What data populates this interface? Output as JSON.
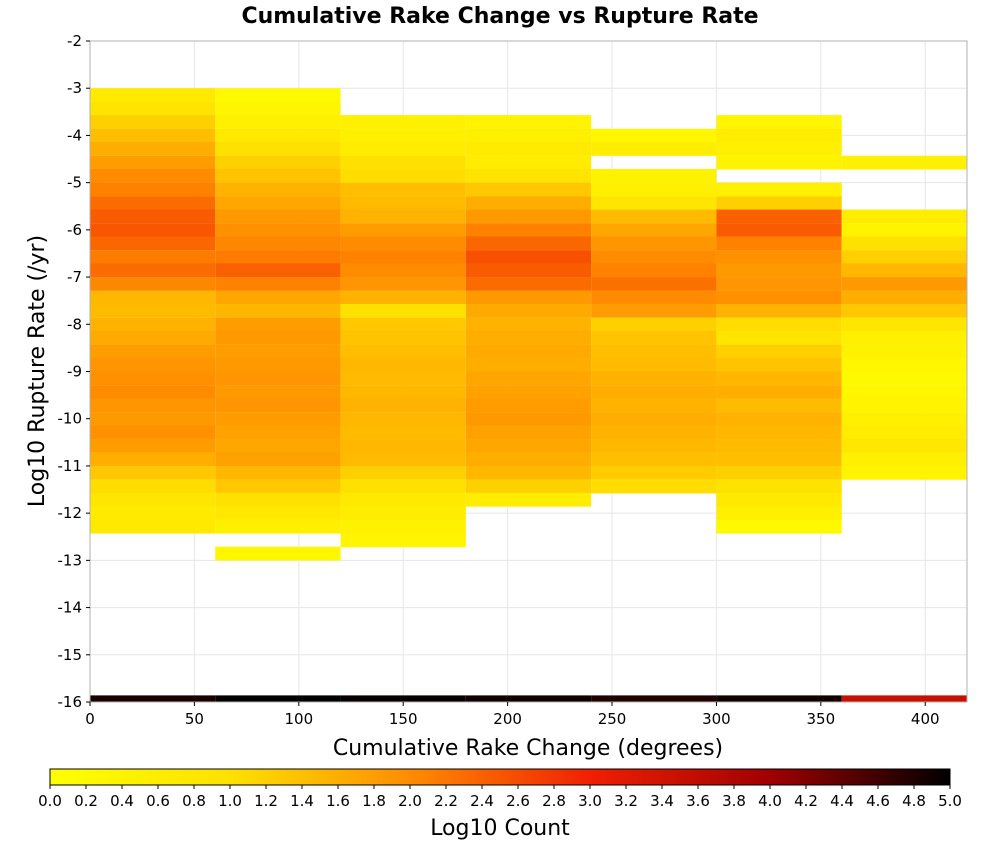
{
  "chart_data": {
    "type": "heatmap",
    "title": "Cumulative Rake Change vs Rupture Rate",
    "xlabel": "Cumulative Rake Change (degrees)",
    "ylabel": "Log10 Rupture Rate (/yr)",
    "xlim": [
      0,
      420
    ],
    "ylim": [
      -16,
      -2
    ],
    "x_ticks": [
      "0",
      "50",
      "100",
      "150",
      "200",
      "250",
      "300",
      "350",
      "400"
    ],
    "y_ticks": [
      "-2",
      "-3",
      "-4",
      "-5",
      "-6",
      "-7",
      "-8",
      "-9",
      "-10",
      "-11",
      "-12",
      "-13",
      "-14",
      "-15",
      "-16"
    ],
    "x_bin_width": 60,
    "x_bin_starts": [
      0,
      60,
      120,
      180,
      240,
      300,
      360
    ],
    "y_bin_height": 0.2857,
    "color_scale": {
      "label": "Log10 Count",
      "min": 0.0,
      "max": 5.0,
      "ticks": [
        "0.0",
        "0.2",
        "0.4",
        "0.6",
        "0.8",
        "1.0",
        "1.2",
        "1.4",
        "1.6",
        "1.8",
        "2.0",
        "2.2",
        "2.4",
        "2.6",
        "2.8",
        "3.0",
        "3.2",
        "3.4",
        "3.6",
        "3.8",
        "4.0",
        "4.2",
        "4.4",
        "4.6",
        "4.8",
        "5.0"
      ],
      "colors": [
        "#ffff00",
        "#ffe100",
        "#ff8c00",
        "#f02000",
        "#a00000",
        "#000000"
      ]
    },
    "columns": [
      {
        "x_start": 0,
        "cells": [
          {
            "y_top": -3.0,
            "value": 0.7
          },
          {
            "y_top": -3.29,
            "value": 0.9
          },
          {
            "y_top": -3.57,
            "value": 1.2
          },
          {
            "y_top": -3.86,
            "value": 1.4
          },
          {
            "y_top": -4.14,
            "value": 1.6
          },
          {
            "y_top": -4.43,
            "value": 1.8
          },
          {
            "y_top": -4.71,
            "value": 2.0
          },
          {
            "y_top": -5.0,
            "value": 2.1
          },
          {
            "y_top": -5.29,
            "value": 2.3
          },
          {
            "y_top": -5.57,
            "value": 2.45
          },
          {
            "y_top": -5.86,
            "value": 2.5
          },
          {
            "y_top": -6.14,
            "value": 2.35
          },
          {
            "y_top": -6.43,
            "value": 2.15
          },
          {
            "y_top": -6.71,
            "value": 2.3
          },
          {
            "y_top": -7.0,
            "value": 2.05
          },
          {
            "y_top": -7.29,
            "value": 1.5
          },
          {
            "y_top": -7.57,
            "value": 1.45
          },
          {
            "y_top": -7.86,
            "value": 1.55
          },
          {
            "y_top": -8.14,
            "value": 1.65
          },
          {
            "y_top": -8.43,
            "value": 1.8
          },
          {
            "y_top": -8.71,
            "value": 1.9
          },
          {
            "y_top": -9.0,
            "value": 1.95
          },
          {
            "y_top": -9.29,
            "value": 2.0
          },
          {
            "y_top": -9.57,
            "value": 1.9
          },
          {
            "y_top": -9.86,
            "value": 1.85
          },
          {
            "y_top": -10.14,
            "value": 1.95
          },
          {
            "y_top": -10.43,
            "value": 1.8
          },
          {
            "y_top": -10.71,
            "value": 1.6
          },
          {
            "y_top": -11.0,
            "value": 1.3
          },
          {
            "y_top": -11.29,
            "value": 1.05
          },
          {
            "y_top": -11.57,
            "value": 0.85
          },
          {
            "y_top": -11.86,
            "value": 0.7
          },
          {
            "y_top": -12.14,
            "value": 0.75
          }
        ]
      },
      {
        "x_start": 60,
        "cells": [
          {
            "y_top": -3.0,
            "value": 0.2
          },
          {
            "y_top": -3.29,
            "value": 0.35
          },
          {
            "y_top": -3.57,
            "value": 0.5
          },
          {
            "y_top": -3.86,
            "value": 0.75
          },
          {
            "y_top": -4.14,
            "value": 1.0
          },
          {
            "y_top": -4.43,
            "value": 1.2
          },
          {
            "y_top": -4.71,
            "value": 1.35
          },
          {
            "y_top": -5.0,
            "value": 1.55
          },
          {
            "y_top": -5.29,
            "value": 1.7
          },
          {
            "y_top": -5.57,
            "value": 1.85
          },
          {
            "y_top": -5.86,
            "value": 1.95
          },
          {
            "y_top": -6.14,
            "value": 2.05
          },
          {
            "y_top": -6.43,
            "value": 2.15
          },
          {
            "y_top": -6.71,
            "value": 2.4
          },
          {
            "y_top": -7.0,
            "value": 2.1
          },
          {
            "y_top": -7.29,
            "value": 1.7
          },
          {
            "y_top": -7.57,
            "value": 1.5
          },
          {
            "y_top": -7.86,
            "value": 1.8
          },
          {
            "y_top": -8.14,
            "value": 1.85
          },
          {
            "y_top": -8.43,
            "value": 1.8
          },
          {
            "y_top": -8.71,
            "value": 1.85
          },
          {
            "y_top": -9.0,
            "value": 1.9
          },
          {
            "y_top": -9.29,
            "value": 1.85
          },
          {
            "y_top": -9.57,
            "value": 1.9
          },
          {
            "y_top": -9.86,
            "value": 1.8
          },
          {
            "y_top": -10.14,
            "value": 1.75
          },
          {
            "y_top": -10.43,
            "value": 1.7
          },
          {
            "y_top": -10.71,
            "value": 1.75
          },
          {
            "y_top": -11.0,
            "value": 1.5
          },
          {
            "y_top": -11.29,
            "value": 1.3
          },
          {
            "y_top": -11.57,
            "value": 1.0
          },
          {
            "y_top": -11.86,
            "value": 0.8
          },
          {
            "y_top": -12.14,
            "value": 0.5
          },
          {
            "y_top": -12.71,
            "value": 0.3
          }
        ]
      },
      {
        "x_start": 120,
        "cells": [
          {
            "y_top": -3.57,
            "value": 0.5
          },
          {
            "y_top": -3.86,
            "value": 0.55
          },
          {
            "y_top": -4.14,
            "value": 0.65
          },
          {
            "y_top": -4.43,
            "value": 1.0
          },
          {
            "y_top": -4.71,
            "value": 1.05
          },
          {
            "y_top": -5.0,
            "value": 1.4
          },
          {
            "y_top": -5.29,
            "value": 1.45
          },
          {
            "y_top": -5.57,
            "value": 1.55
          },
          {
            "y_top": -5.86,
            "value": 1.8
          },
          {
            "y_top": -6.14,
            "value": 2.0
          },
          {
            "y_top": -6.43,
            "value": 2.1
          },
          {
            "y_top": -6.71,
            "value": 2.0
          },
          {
            "y_top": -7.0,
            "value": 1.9
          },
          {
            "y_top": -7.29,
            "value": 1.55
          },
          {
            "y_top": -7.57,
            "value": 1.0
          },
          {
            "y_top": -7.86,
            "value": 1.3
          },
          {
            "y_top": -8.14,
            "value": 1.35
          },
          {
            "y_top": -8.43,
            "value": 1.4
          },
          {
            "y_top": -8.71,
            "value": 1.5
          },
          {
            "y_top": -9.0,
            "value": 1.45
          },
          {
            "y_top": -9.29,
            "value": 1.5
          },
          {
            "y_top": -9.57,
            "value": 1.55
          },
          {
            "y_top": -9.86,
            "value": 1.5
          },
          {
            "y_top": -10.14,
            "value": 1.45
          },
          {
            "y_top": -10.43,
            "value": 1.5
          },
          {
            "y_top": -10.71,
            "value": 1.45
          },
          {
            "y_top": -11.0,
            "value": 1.2
          },
          {
            "y_top": -11.29,
            "value": 1.0
          },
          {
            "y_top": -11.57,
            "value": 0.75
          },
          {
            "y_top": -11.86,
            "value": 0.6
          },
          {
            "y_top": -12.14,
            "value": 0.45
          },
          {
            "y_top": -12.43,
            "value": 0.35
          }
        ]
      },
      {
        "x_start": 180,
        "cells": [
          {
            "y_top": -3.57,
            "value": 0.4
          },
          {
            "y_top": -3.86,
            "value": 0.55
          },
          {
            "y_top": -4.14,
            "value": 0.7
          },
          {
            "y_top": -4.43,
            "value": 0.65
          },
          {
            "y_top": -4.71,
            "value": 0.9
          },
          {
            "y_top": -5.0,
            "value": 1.3
          },
          {
            "y_top": -5.29,
            "value": 1.6
          },
          {
            "y_top": -5.57,
            "value": 1.85
          },
          {
            "y_top": -5.86,
            "value": 2.1
          },
          {
            "y_top": -6.14,
            "value": 2.35
          },
          {
            "y_top": -6.43,
            "value": 2.55
          },
          {
            "y_top": -6.71,
            "value": 2.45
          },
          {
            "y_top": -7.0,
            "value": 2.3
          },
          {
            "y_top": -7.29,
            "value": 1.85
          },
          {
            "y_top": -7.57,
            "value": 1.65
          },
          {
            "y_top": -7.86,
            "value": 1.55
          },
          {
            "y_top": -8.14,
            "value": 1.6
          },
          {
            "y_top": -8.43,
            "value": 1.65
          },
          {
            "y_top": -8.71,
            "value": 1.6
          },
          {
            "y_top": -9.0,
            "value": 1.7
          },
          {
            "y_top": -9.29,
            "value": 1.75
          },
          {
            "y_top": -9.57,
            "value": 1.8
          },
          {
            "y_top": -9.86,
            "value": 1.85
          },
          {
            "y_top": -10.14,
            "value": 1.75
          },
          {
            "y_top": -10.43,
            "value": 1.7
          },
          {
            "y_top": -10.71,
            "value": 1.6
          },
          {
            "y_top": -11.0,
            "value": 1.5
          },
          {
            "y_top": -11.29,
            "value": 1.2
          },
          {
            "y_top": -11.57,
            "value": 0.6
          }
        ]
      },
      {
        "x_start": 240,
        "cells": [
          {
            "y_top": -3.86,
            "value": 0.3
          },
          {
            "y_top": -4.14,
            "value": 0.6
          },
          {
            "y_top": -4.71,
            "value": 0.45
          },
          {
            "y_top": -5.0,
            "value": 0.55
          },
          {
            "y_top": -5.29,
            "value": 0.85
          },
          {
            "y_top": -5.57,
            "value": 1.45
          },
          {
            "y_top": -5.86,
            "value": 1.7
          },
          {
            "y_top": -6.14,
            "value": 1.9
          },
          {
            "y_top": -6.43,
            "value": 2.0
          },
          {
            "y_top": -6.71,
            "value": 2.1
          },
          {
            "y_top": -7.0,
            "value": 2.25
          },
          {
            "y_top": -7.29,
            "value": 2.0
          },
          {
            "y_top": -7.57,
            "value": 1.8
          },
          {
            "y_top": -7.86,
            "value": 1.2
          },
          {
            "y_top": -8.14,
            "value": 1.35
          },
          {
            "y_top": -8.43,
            "value": 1.4
          },
          {
            "y_top": -8.71,
            "value": 1.45
          },
          {
            "y_top": -9.0,
            "value": 1.55
          },
          {
            "y_top": -9.29,
            "value": 1.6
          },
          {
            "y_top": -9.57,
            "value": 1.55
          },
          {
            "y_top": -9.86,
            "value": 1.6
          },
          {
            "y_top": -10.14,
            "value": 1.55
          },
          {
            "y_top": -10.43,
            "value": 1.5
          },
          {
            "y_top": -10.71,
            "value": 1.4
          },
          {
            "y_top": -11.0,
            "value": 1.25
          },
          {
            "y_top": -11.29,
            "value": 1.05
          }
        ]
      },
      {
        "x_start": 300,
        "cells": [
          {
            "y_top": -3.57,
            "value": 0.35
          },
          {
            "y_top": -3.86,
            "value": 0.6
          },
          {
            "y_top": -4.14,
            "value": 0.5
          },
          {
            "y_top": -4.43,
            "value": 0.4
          },
          {
            "y_top": -5.0,
            "value": 0.5
          },
          {
            "y_top": -5.29,
            "value": 1.2
          },
          {
            "y_top": -5.57,
            "value": 2.4
          },
          {
            "y_top": -5.86,
            "value": 2.45
          },
          {
            "y_top": -6.14,
            "value": 2.1
          },
          {
            "y_top": -6.43,
            "value": 1.95
          },
          {
            "y_top": -6.71,
            "value": 1.85
          },
          {
            "y_top": -7.0,
            "value": 1.9
          },
          {
            "y_top": -7.29,
            "value": 1.95
          },
          {
            "y_top": -7.57,
            "value": 1.55
          },
          {
            "y_top": -7.86,
            "value": 1.05
          },
          {
            "y_top": -8.14,
            "value": 0.9
          },
          {
            "y_top": -8.43,
            "value": 1.2
          },
          {
            "y_top": -8.71,
            "value": 1.35
          },
          {
            "y_top": -9.0,
            "value": 1.5
          },
          {
            "y_top": -9.29,
            "value": 1.6
          },
          {
            "y_top": -9.57,
            "value": 1.45
          },
          {
            "y_top": -9.86,
            "value": 1.55
          },
          {
            "y_top": -10.14,
            "value": 1.5
          },
          {
            "y_top": -10.43,
            "value": 1.45
          },
          {
            "y_top": -10.71,
            "value": 1.4
          },
          {
            "y_top": -11.0,
            "value": 1.2
          },
          {
            "y_top": -11.29,
            "value": 0.95
          },
          {
            "y_top": -11.57,
            "value": 0.75
          },
          {
            "y_top": -11.86,
            "value": 0.55
          },
          {
            "y_top": -12.14,
            "value": 0.2
          }
        ]
      },
      {
        "x_start": 360,
        "cells": [
          {
            "y_top": -4.43,
            "value": 0.55
          },
          {
            "y_top": -5.57,
            "value": 0.6
          },
          {
            "y_top": -5.86,
            "value": 0.4
          },
          {
            "y_top": -6.14,
            "value": 1.0
          },
          {
            "y_top": -6.43,
            "value": 1.2
          },
          {
            "y_top": -6.71,
            "value": 1.5
          },
          {
            "y_top": -7.0,
            "value": 1.85
          },
          {
            "y_top": -7.29,
            "value": 1.6
          },
          {
            "y_top": -7.57,
            "value": 1.3
          },
          {
            "y_top": -7.86,
            "value": 0.85
          },
          {
            "y_top": -8.14,
            "value": 0.55
          },
          {
            "y_top": -8.43,
            "value": 0.45
          },
          {
            "y_top": -8.71,
            "value": 0.3
          },
          {
            "y_top": -9.0,
            "value": 0.2
          },
          {
            "y_top": -9.29,
            "value": 0.3
          },
          {
            "y_top": -9.57,
            "value": 0.4
          },
          {
            "y_top": -9.86,
            "value": 0.5
          },
          {
            "y_top": -10.14,
            "value": 0.65
          },
          {
            "y_top": -10.43,
            "value": 0.8
          },
          {
            "y_top": -10.71,
            "value": 0.55
          },
          {
            "y_top": -11.0,
            "value": 0.4
          }
        ]
      }
    ],
    "bottom_row": {
      "y_top": -15.86,
      "y_bottom": -16.0,
      "values": [
        4.85,
        5.0,
        4.95,
        4.9,
        4.8,
        4.9,
        3.5
      ]
    }
  }
}
